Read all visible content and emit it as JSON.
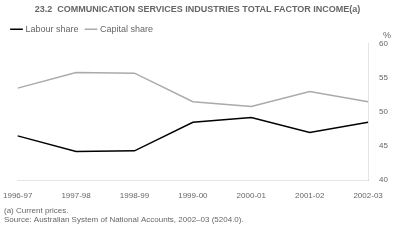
{
  "chart_data": {
    "type": "line",
    "title": "23.2  COMMUNICATION SERVICES INDUSTRIES TOTAL FACTOR INCOME(a)",
    "categories": [
      "1996-97",
      "1997-98",
      "1998-99",
      "1999-00",
      "2000-01",
      "2001-02",
      "2002-03"
    ],
    "series": [
      {
        "name": "Labour share",
        "color": "#000000",
        "values": [
          46.5,
          44.2,
          44.3,
          48.5,
          49.2,
          47.0,
          48.5
        ]
      },
      {
        "name": "Capital share",
        "color": "#aaaaaa",
        "values": [
          53.5,
          55.8,
          55.7,
          51.5,
          50.8,
          53.0,
          51.5
        ]
      }
    ],
    "ylabel": "%",
    "ylim": [
      40,
      60
    ],
    "yticks": [
      40,
      45,
      50,
      55,
      60
    ],
    "grid": false,
    "legend": "top-left",
    "annotations": [
      "(a) Current prices.",
      "Source: Australian System of National Accounts, 2002–03 (5204.0)."
    ]
  }
}
